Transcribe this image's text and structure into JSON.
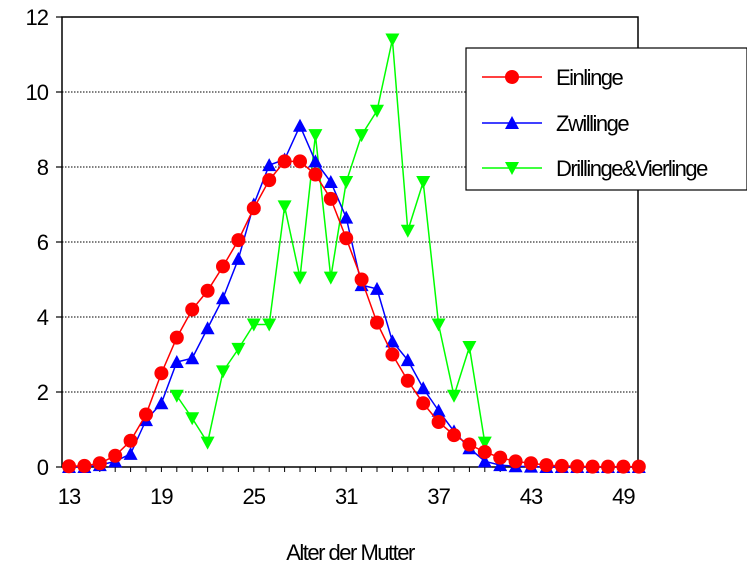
{
  "chart_data": {
    "type": "line",
    "xlabel": "Alter der Mutter",
    "ylabel": "",
    "xlim": [
      13,
      50
    ],
    "ylim": [
      0,
      12
    ],
    "x_ticks": [
      13,
      19,
      25,
      31,
      37,
      43,
      49
    ],
    "y_ticks": [
      0,
      2,
      4,
      6,
      8,
      10,
      12
    ],
    "grid": "horizontal dotted",
    "legend_position": "top-right",
    "series": [
      {
        "name": "Einlinge",
        "color": "#ff0000",
        "marker": "circle",
        "x": [
          13,
          14,
          15,
          16,
          17,
          18,
          19,
          20,
          21,
          22,
          23,
          24,
          25,
          26,
          27,
          28,
          29,
          30,
          31,
          32,
          33,
          34,
          35,
          36,
          37,
          38,
          39,
          40,
          41,
          42,
          43,
          44,
          45,
          46,
          47,
          48,
          49,
          50
        ],
        "y": [
          0.02,
          0.03,
          0.1,
          0.3,
          0.7,
          1.4,
          2.5,
          3.45,
          4.2,
          4.7,
          5.35,
          6.05,
          6.9,
          7.65,
          8.15,
          8.15,
          7.8,
          7.15,
          6.1,
          5.0,
          3.85,
          3.0,
          2.3,
          1.7,
          1.2,
          0.85,
          0.6,
          0.4,
          0.25,
          0.15,
          0.1,
          0.05,
          0.03,
          0.02,
          0.01,
          0.01,
          0.01,
          0.01
        ]
      },
      {
        "name": "Zwillinge",
        "color": "#0000ff",
        "marker": "triangle-up",
        "x": [
          13,
          14,
          15,
          16,
          17,
          18,
          19,
          20,
          21,
          22,
          23,
          24,
          25,
          26,
          27,
          28,
          29,
          30,
          31,
          32,
          33,
          34,
          35,
          36,
          37,
          38,
          39,
          40,
          41,
          42,
          43,
          44,
          45,
          46,
          47,
          48,
          49,
          50
        ],
        "y": [
          0.0,
          0.0,
          0.05,
          0.15,
          0.35,
          1.25,
          1.7,
          2.8,
          2.9,
          3.7,
          4.5,
          5.55,
          7.0,
          8.05,
          8.2,
          9.1,
          8.15,
          7.6,
          6.65,
          4.85,
          4.75,
          3.35,
          2.85,
          2.1,
          1.5,
          0.95,
          0.5,
          0.15,
          0.05,
          0.02,
          0.01,
          0.0,
          0.0,
          0.0,
          0.0,
          0.0,
          0.0,
          0.0
        ]
      },
      {
        "name": "Drillinge&Vierlinge",
        "color": "#00ff00",
        "marker": "triangle-down",
        "x": [
          20,
          21,
          22,
          23,
          24,
          25,
          26,
          27,
          28,
          29,
          30,
          31,
          32,
          33,
          34,
          35,
          36,
          37,
          38,
          39,
          40
        ],
        "y": [
          1.9,
          1.3,
          0.65,
          2.55,
          3.15,
          3.8,
          3.8,
          6.95,
          5.05,
          8.85,
          5.05,
          7.6,
          8.85,
          9.5,
          11.4,
          6.3,
          7.6,
          3.8,
          1.9,
          3.2,
          0.65
        ]
      }
    ]
  }
}
